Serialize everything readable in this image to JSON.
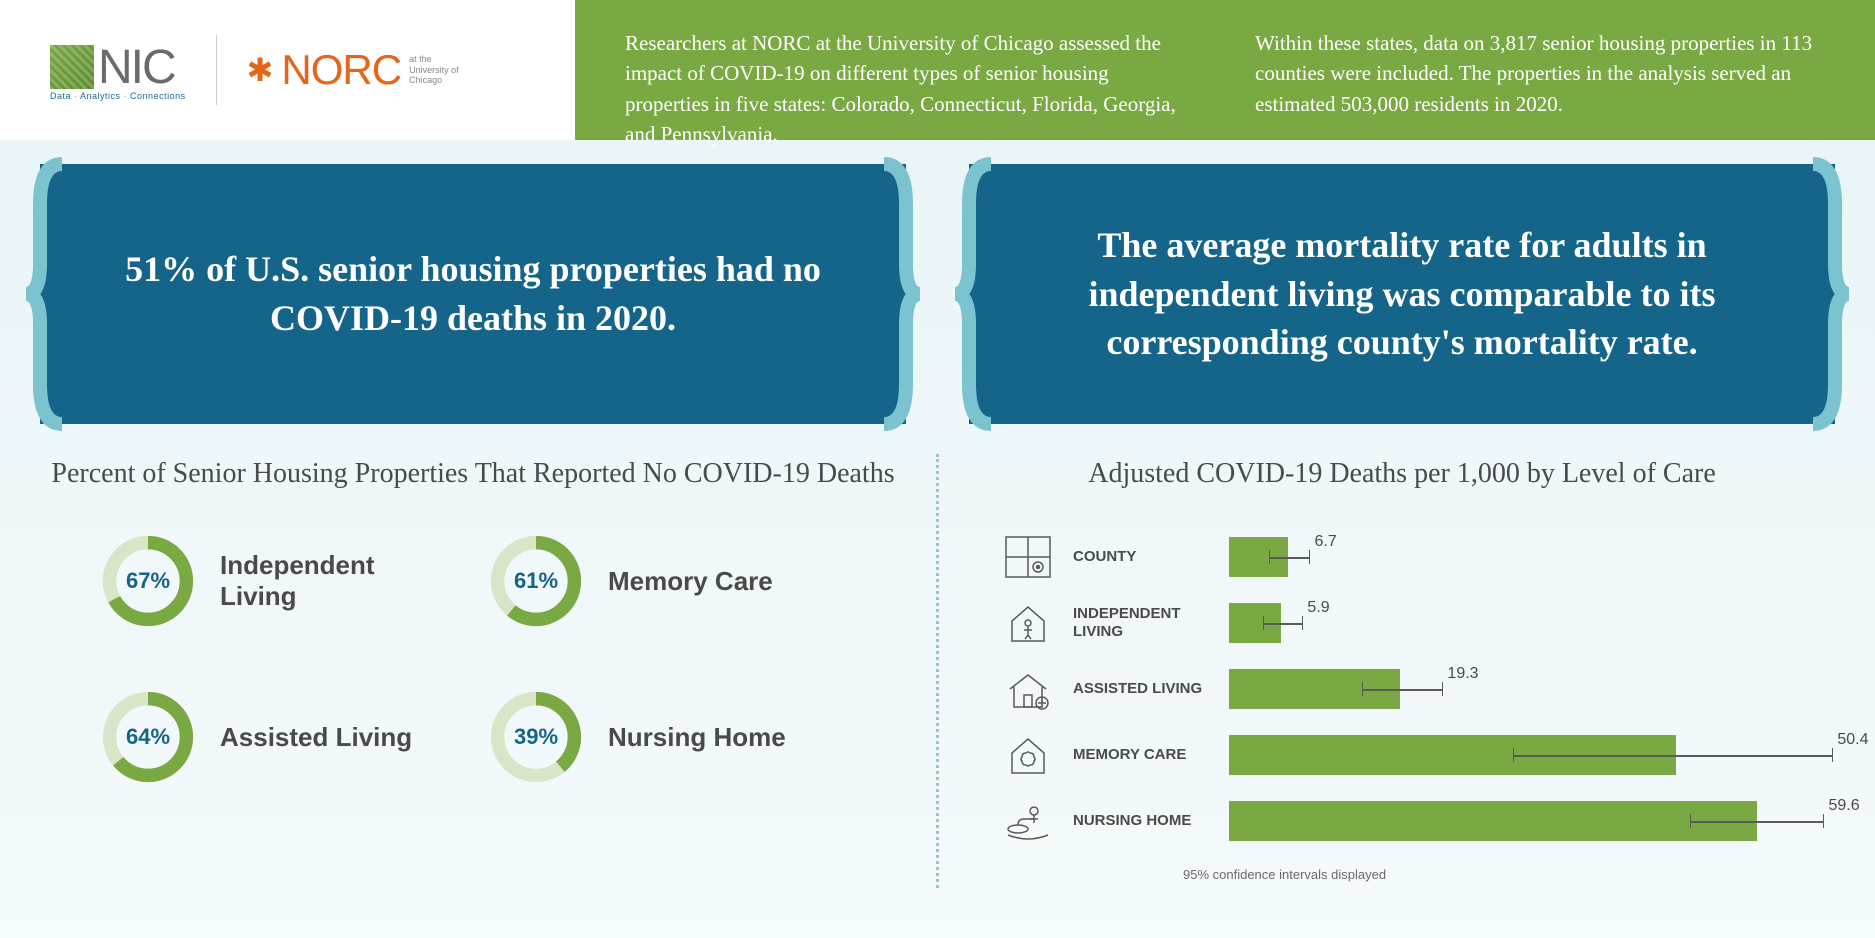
{
  "header": {
    "nic_text": "NIC",
    "nic_tagline_parts": [
      "Data",
      "Analytics",
      "Connections"
    ],
    "norc_text": "NORC",
    "norc_sub": "at the\nUniversity of\nChicago",
    "intro_left": "Researchers at NORC at the University of Chicago assessed the impact of COVID-19 on different types of senior housing properties in five states: Colorado, Connecticut, Florida, Georgia, and Pennsylvania.",
    "intro_right": "Within these states, data on 3,817 senior housing properties in 113 counties were included. The properties in the analysis served an estimated 503,000 residents in 2020."
  },
  "left": {
    "callout": "51% of U.S. senior housing properties had no COVID-19 deaths in 2020.",
    "section_title": "Percent of Senior Housing Properties That Reported No COVID-19 Deaths",
    "donuts": [
      {
        "pct": 67,
        "label": "67%",
        "name": "Independent Living"
      },
      {
        "pct": 61,
        "label": "61%",
        "name": "Memory Care"
      },
      {
        "pct": 64,
        "label": "64%",
        "name": "Assisted Living"
      },
      {
        "pct": 39,
        "label": "39%",
        "name": "Nursing Home"
      }
    ],
    "donut_colors": {
      "fg": "#7aa843",
      "bg": "#d9e5c7",
      "label": "#156489"
    }
  },
  "right": {
    "callout": "The average mortality rate for adults in independent living was comparable to its corresponding county's mortality rate.",
    "section_title": "Adjusted COVID-19 Deaths per 1,000 by Level of Care",
    "max_value": 65,
    "bars": [
      {
        "icon": "county",
        "cat": "COUNTY",
        "value": 6.7,
        "label": "6.7",
        "err_lo": 4.5,
        "err_hi": 9.0
      },
      {
        "icon": "indep",
        "cat": "INDEPENDENT LIVING",
        "value": 5.9,
        "label": "5.9",
        "err_lo": 3.8,
        "err_hi": 8.2
      },
      {
        "icon": "assist",
        "cat": "ASSISTED LIVING",
        "value": 19.3,
        "label": "19.3",
        "err_lo": 15.0,
        "err_hi": 24.0
      },
      {
        "icon": "memory",
        "cat": "MEMORY CARE",
        "value": 50.4,
        "label": "50.4",
        "err_lo": 32.0,
        "err_hi": 68.0
      },
      {
        "icon": "nursing",
        "cat": "NURSING HOME",
        "value": 59.6,
        "label": "59.6",
        "err_lo": 52.0,
        "err_hi": 67.0
      }
    ],
    "bar_color": "#7aa843",
    "footnote": "95% confidence intervals displayed"
  },
  "colors": {
    "callout_bg": "#156489",
    "bracket": "#7bc3cf",
    "green_panel": "#7aa843"
  }
}
